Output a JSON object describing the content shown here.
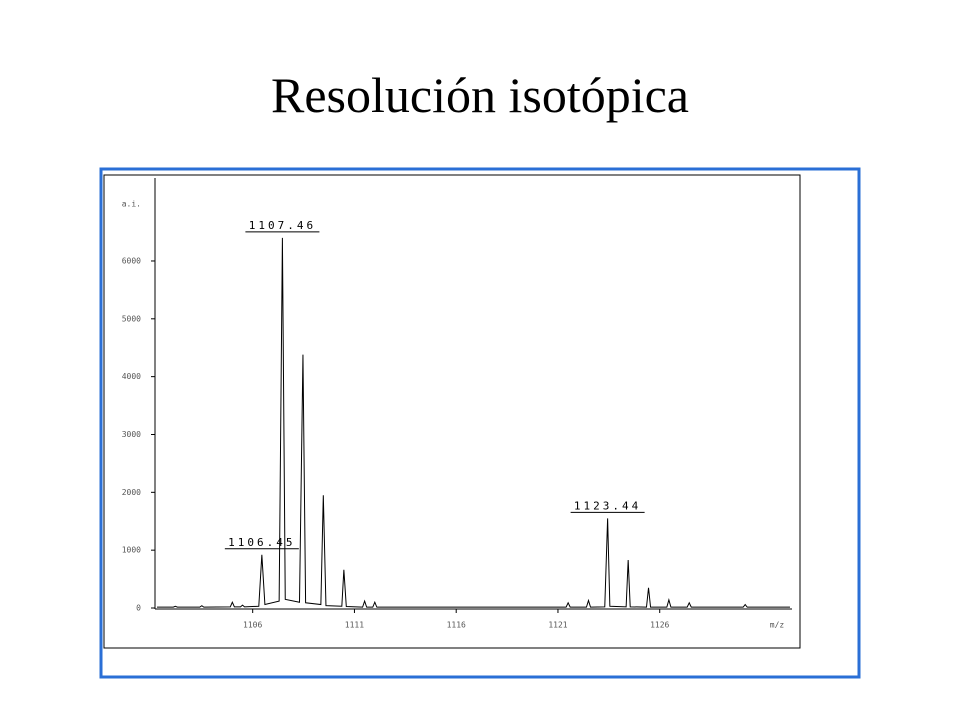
{
  "title": "Resolución isotópica",
  "chart_data": {
    "type": "line",
    "x_label": "m/z",
    "y_label": "a.i.",
    "x": [
      1101.3,
      1102.1,
      1102.2,
      1102.3,
      1103.4,
      1103.5,
      1103.6,
      1104.9,
      1105.0,
      1105.1,
      1105.4,
      1105.5,
      1105.6,
      1106.3,
      1106.45,
      1106.6,
      1107.3,
      1107.46,
      1107.6,
      1108.3,
      1108.47,
      1108.6,
      1109.35,
      1109.47,
      1109.6,
      1110.38,
      1110.48,
      1110.6,
      1111.4,
      1111.5,
      1111.6,
      1111.9,
      1112.0,
      1112.1,
      1121.4,
      1121.5,
      1121.6,
      1122.4,
      1122.5,
      1122.6,
      1123.3,
      1123.44,
      1123.55,
      1124.35,
      1124.45,
      1124.55,
      1125.35,
      1125.45,
      1125.55,
      1126.35,
      1126.45,
      1126.55,
      1127.35,
      1127.45,
      1127.55,
      1130.1,
      1130.2,
      1130.3,
      1132.4
    ],
    "series": [
      {
        "color": "#000000",
        "values": [
          15,
          15,
          30,
          15,
          15,
          40,
          15,
          20,
          100,
          20,
          20,
          50,
          20,
          30,
          920,
          60,
          120,
          6400,
          150,
          100,
          4380,
          90,
          60,
          1950,
          40,
          30,
          660,
          25,
          15,
          120,
          15,
          15,
          100,
          15,
          15,
          90,
          15,
          15,
          130,
          15,
          20,
          1550,
          30,
          20,
          830,
          20,
          15,
          350,
          15,
          15,
          140,
          15,
          15,
          90,
          15,
          15,
          60,
          15,
          15
        ]
      }
    ],
    "peak_labels": [
      1106.45,
      1107.46,
      1123.44
    ],
    "xlim": [
      1101.2,
      1132.5
    ],
    "ylim": [
      0,
      7400
    ],
    "xticks": [
      1106,
      1111,
      1116,
      1121,
      1126
    ],
    "yticks": [
      0,
      1000,
      2000,
      3000,
      4000,
      5000,
      6000
    ]
  }
}
